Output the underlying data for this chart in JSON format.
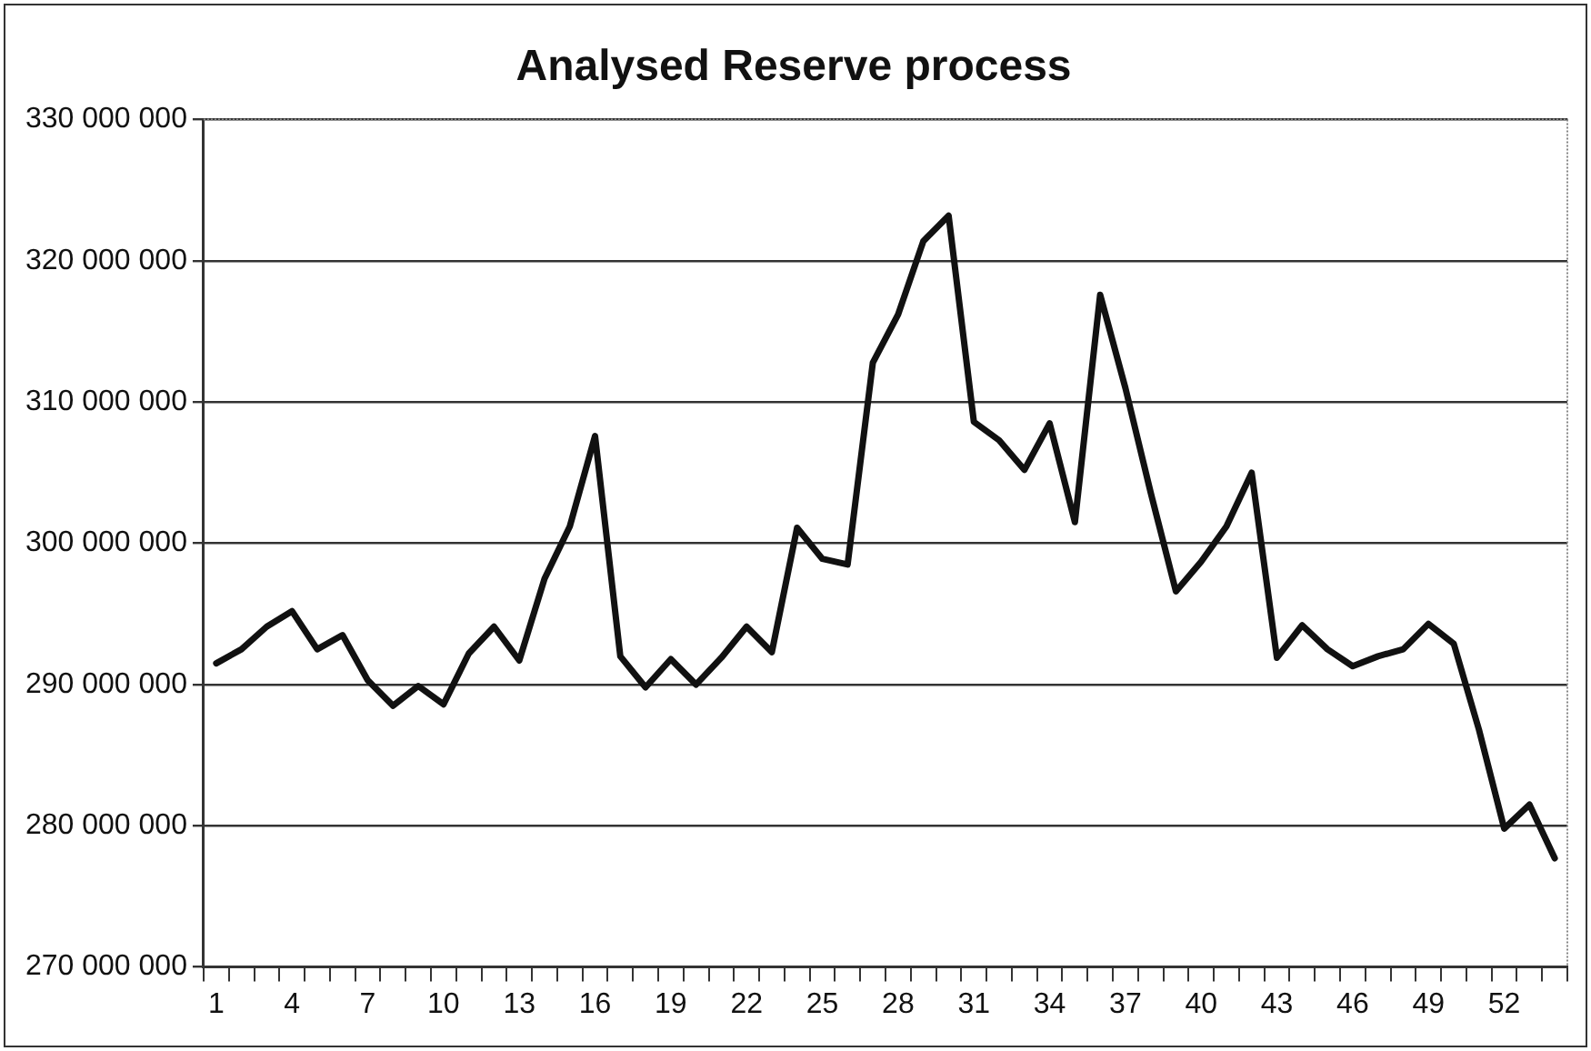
{
  "chart_data": {
    "type": "line",
    "title": "Analysed Reserve process",
    "categories": [
      "1",
      null,
      null,
      "4",
      null,
      null,
      "7",
      null,
      null,
      "10",
      null,
      null,
      "13",
      null,
      null,
      "16",
      null,
      null,
      "19",
      null,
      null,
      "22",
      null,
      null,
      "25",
      null,
      null,
      "28",
      null,
      null,
      "31",
      null,
      null,
      "34",
      null,
      null,
      "37",
      null,
      null,
      "40",
      null,
      null,
      "43",
      null,
      null,
      "46",
      null,
      null,
      "49",
      null,
      null,
      "52",
      null,
      null
    ],
    "series": [
      {
        "color": "#111111",
        "values": [
          291500000,
          292500000,
          294100000,
          295200000,
          292500000,
          293500000,
          290300000,
          288500000,
          289900000,
          288600000,
          292200000,
          294100000,
          291700000,
          297500000,
          301200000,
          307600000,
          292000000,
          289800000,
          291800000,
          290000000,
          291900000,
          294100000,
          292300000,
          301100000,
          298900000,
          298500000,
          312800000,
          316200000,
          321400000,
          323200000,
          308600000,
          307300000,
          305200000,
          308500000,
          301500000,
          317600000,
          311000000,
          303600000,
          296600000,
          298700000,
          301200000,
          305000000,
          291900000,
          294200000,
          292500000,
          291300000,
          292000000,
          292500000,
          294300000,
          292900000,
          286800000,
          279800000,
          281500000,
          277700000
        ]
      }
    ],
    "ylim": [
      270000000,
      330000000
    ],
    "yticks": [
      {
        "value": 270000000,
        "label": "270 000 000"
      },
      {
        "value": 280000000,
        "label": "280 000 000"
      },
      {
        "value": 290000000,
        "label": "290 000 000"
      },
      {
        "value": 300000000,
        "label": "300 000 000"
      },
      {
        "value": 310000000,
        "label": "310 000 000"
      },
      {
        "value": 320000000,
        "label": "320 000 000"
      },
      {
        "value": 330000000,
        "label": "330 000 000"
      }
    ],
    "grid": "y",
    "legend": false,
    "marker": "none",
    "line_style": "solid"
  }
}
